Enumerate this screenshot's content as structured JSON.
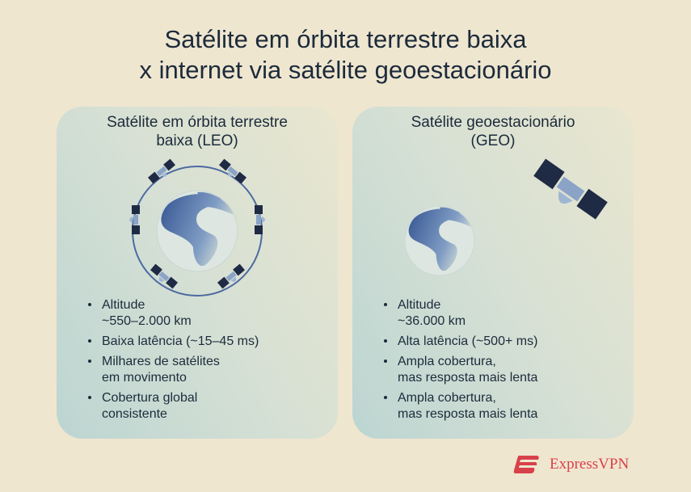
{
  "title": {
    "line1": "Satélite em órbita terrestre baixa",
    "line2": "x internet via satélite geoestacionário"
  },
  "cards": [
    {
      "title1": "Satélite em órbita terrestre",
      "title2": "baixa (LEO)",
      "bullets": [
        [
          "Altitude",
          "~550–2.000 km"
        ],
        [
          "Baixa latência (~15–45 ms)"
        ],
        [
          "Milhares de satélites",
          "em movimento"
        ],
        [
          "Cobertura global",
          "consistente"
        ]
      ]
    },
    {
      "title1": "Satélite geoestacionário",
      "title2": "(GEO)",
      "bullets": [
        [
          "Altitude",
          "~36.000 km"
        ],
        [
          "Alta latência (~500+ ms)"
        ],
        [
          "Ampla cobertura,",
          "mas resposta mais lenta"
        ],
        [
          "Ampla cobertura,",
          "mas resposta mais lenta"
        ]
      ]
    }
  ],
  "brand": {
    "name": "ExpressVPN",
    "color": "#d9414a"
  },
  "colors": {
    "background": "#efe6d0",
    "text": "#1c2b3b",
    "globe": "#4a6aa0"
  }
}
